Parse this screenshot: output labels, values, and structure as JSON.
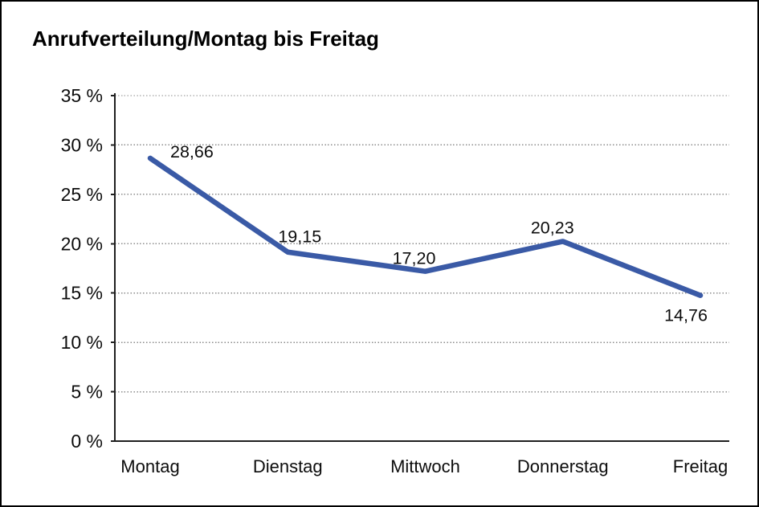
{
  "chart_data": {
    "type": "line",
    "title": "Anrufverteilung/Montag bis Freitag",
    "categories": [
      "Montag",
      "Dienstag",
      "Mittwoch",
      "Donnerstag",
      "Freitag"
    ],
    "series": [
      {
        "values": [
          28.66,
          19.15,
          17.2,
          20.23,
          14.76
        ],
        "labels": [
          "28,66",
          "19,15",
          "17,20",
          "20,23",
          "14,76"
        ],
        "color": "#3a5aa6"
      }
    ],
    "xlabel": "",
    "ylabel": "",
    "y_axis": {
      "min": 0,
      "max": 35,
      "step": 5,
      "tick_labels": [
        "0 %",
        "5 %",
        "10 %",
        "15 %",
        "20 %",
        "25 %",
        "30 %",
        "35 %"
      ]
    },
    "x_axis": {
      "tick_labels": [
        "Montag",
        "Dienstag",
        "Mittwoch",
        "Donnerstag",
        "Freitag"
      ]
    },
    "grid": "horizontal-dotted",
    "legend": "none"
  },
  "colors": {
    "line": "#3a5aa6",
    "grid": "#8c8c8c",
    "axis": "#1f1f1f",
    "text": "#0c0c0c",
    "background": "#ffffff",
    "border": "#000000"
  }
}
